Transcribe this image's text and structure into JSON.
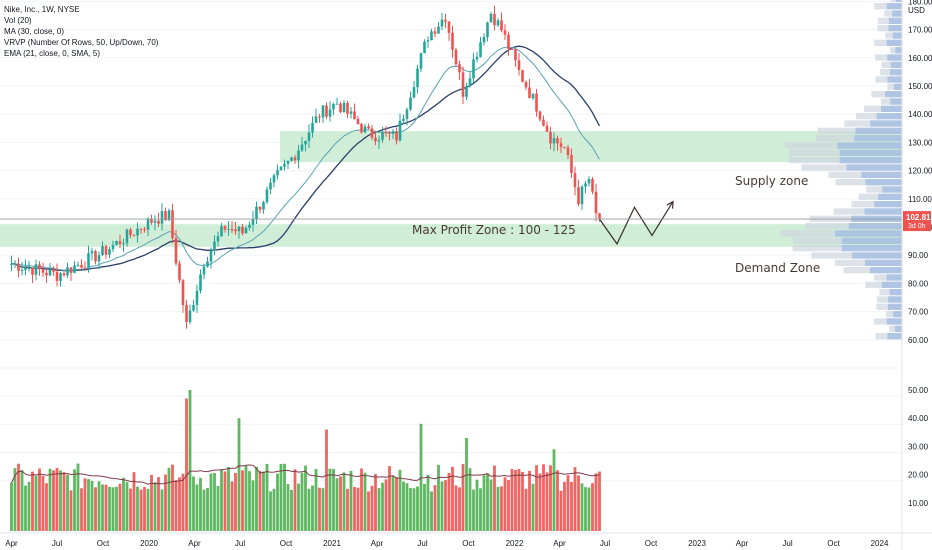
{
  "legend": {
    "symbol_line": "Nike, Inc., 1W, NYSE",
    "vol_line": "Vol (20)",
    "ma_line": "MA (30, close, 0)",
    "vrvp_line": "VRVP (Number Of Rows, 50, Up/Down, 70)",
    "ema_line": "EMA (21, close, 0, SMA, 5)"
  },
  "currency": "USD",
  "price_tag": {
    "value": "102.81",
    "countdown": "3d 0h"
  },
  "annotations": {
    "supply": "Supply zone",
    "demand": "Demand Zone",
    "max_profit": "Max Profit Zone : 100 - 125"
  },
  "colors": {
    "up": "#26a69a",
    "up_bar": "#4caf50",
    "down": "#ef5350",
    "zone": "#c8ebd0",
    "ma": "#2a3f6b",
    "ema": "#5aa2b3",
    "vrvp": "#9fbbe0",
    "vrvp_dark": "#cfd5df",
    "price_tag": "#ef5350"
  },
  "chart_data": {
    "type": "candlestick",
    "symbol": "Nike, Inc., 1W, NYSE",
    "y_axis_ticks": [
      10,
      20,
      30,
      40,
      50,
      60,
      70,
      80,
      90,
      100,
      110,
      120,
      130,
      140,
      150,
      160,
      170,
      180
    ],
    "price_range": [
      58,
      187
    ],
    "x_axis_ticks": [
      "Apr",
      "Jul",
      "Oct",
      "2020",
      "Apr",
      "Jul",
      "Oct",
      "2021",
      "Apr",
      "Jul",
      "Oct",
      "2022",
      "Apr",
      "Jul",
      "Oct",
      "2023",
      "Apr",
      "Jul",
      "Oct",
      "2024"
    ],
    "supply_zone": [
      123,
      134
    ],
    "demand_zone": [
      93,
      101
    ],
    "last_price": 102.81,
    "price_waypoints": [
      [
        "2019-04-01",
        87
      ],
      [
        "2019-07-01",
        83
      ],
      [
        "2019-10-01",
        91
      ],
      [
        "2019-12-16",
        100
      ],
      [
        "2020-01-13",
        103
      ],
      [
        "2020-02-10",
        104
      ],
      [
        "2020-03-16",
        65
      ],
      [
        "2020-04-20",
        88
      ],
      [
        "2020-06-01",
        100
      ],
      [
        "2020-07-06",
        98
      ],
      [
        "2020-09-14",
        118
      ],
      [
        "2020-10-19",
        126
      ],
      [
        "2020-12-07",
        140
      ],
      [
        "2021-01-11",
        144
      ],
      [
        "2021-03-15",
        133
      ],
      [
        "2021-05-10",
        132
      ],
      [
        "2021-06-21",
        156
      ],
      [
        "2021-07-12",
        168
      ],
      [
        "2021-08-16",
        175
      ],
      [
        "2021-09-20",
        148
      ],
      [
        "2021-10-25",
        166
      ],
      [
        "2021-11-15",
        176
      ],
      [
        "2021-12-06",
        170
      ],
      [
        "2022-01-10",
        155
      ],
      [
        "2022-02-14",
        143
      ],
      [
        "2022-03-14",
        132
      ],
      [
        "2022-04-11",
        128
      ],
      [
        "2022-05-09",
        110
      ],
      [
        "2022-05-30",
        117
      ],
      [
        "2022-06-13",
        104
      ],
      [
        "2022-06-20",
        102.81
      ]
    ],
    "volume_range": [
      0,
      55
    ],
    "volume_ticks": [
      10,
      20,
      30,
      40,
      50
    ],
    "volume_spikes_millions": [
      [
        "2020-03-16",
        47
      ],
      [
        "2020-03-23",
        50
      ],
      [
        "2020-06-29",
        40
      ],
      [
        "2020-12-21",
        36
      ],
      [
        "2021-06-28",
        38
      ],
      [
        "2021-09-27",
        33
      ],
      [
        "2022-03-21",
        29
      ],
      [
        "2022-06-27",
        22
      ]
    ],
    "projection_path": [
      [
        "2022-06-20",
        102.81
      ],
      [
        "2022-07-25",
        94
      ],
      [
        "2022-08-29",
        107
      ],
      [
        "2022-10-03",
        97
      ],
      [
        "2022-11-14",
        109
      ]
    ],
    "profile_peak_levels": [
      95,
      125
    ]
  }
}
